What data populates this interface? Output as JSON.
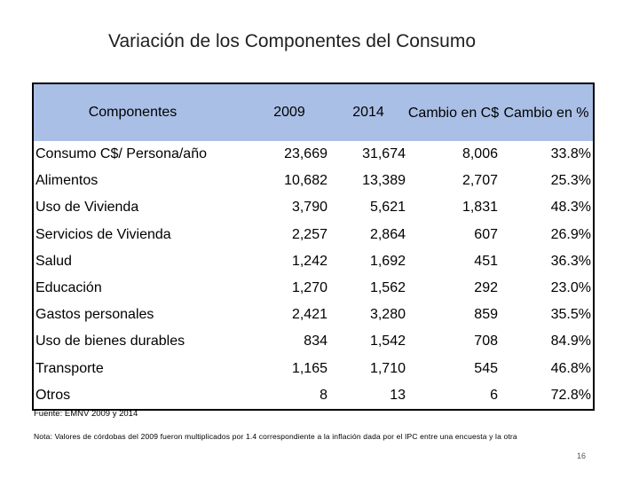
{
  "title": "Variación de los Componentes del Consumo",
  "table": {
    "headers": {
      "components": "Componentes",
      "y2009": "2009",
      "y2014": "2014",
      "change_abs": "Cambio en C$",
      "change_pct": "Cambio en %"
    },
    "rows": [
      {
        "name": "Consumo C$/ Persona/año",
        "y2009": "23,669",
        "y2014": "31,674",
        "change_abs": "8,006",
        "change_pct": "33.8%"
      },
      {
        "name": "Alimentos",
        "y2009": "10,682",
        "y2014": "13,389",
        "change_abs": "2,707",
        "change_pct": "25.3%"
      },
      {
        "name": "Uso de Vivienda",
        "y2009": "3,790",
        "y2014": "5,621",
        "change_abs": "1,831",
        "change_pct": "48.3%"
      },
      {
        "name": "Servicios de Vivienda",
        "y2009": "2,257",
        "y2014": "2,864",
        "change_abs": "607",
        "change_pct": "26.9%"
      },
      {
        "name": "Salud",
        "y2009": "1,242",
        "y2014": "1,692",
        "change_abs": "451",
        "change_pct": "36.3%"
      },
      {
        "name": "Educación",
        "y2009": "1,270",
        "y2014": "1,562",
        "change_abs": "292",
        "change_pct": "23.0%"
      },
      {
        "name": "Gastos personales",
        "y2009": "2,421",
        "y2014": "3,280",
        "change_abs": "859",
        "change_pct": "35.5%"
      },
      {
        "name": "Uso de bienes durables",
        "y2009": "834",
        "y2014": "1,542",
        "change_abs": "708",
        "change_pct": "84.9%"
      },
      {
        "name": "Transporte",
        "y2009": "1,165",
        "y2014": "1,710",
        "change_abs": "545",
        "change_pct": "46.8%"
      },
      {
        "name": "Otros",
        "y2009": "8",
        "y2014": "13",
        "change_abs": "6",
        "change_pct": "72.8%"
      }
    ]
  },
  "source": "Fuente: EMNV 2009 y 2014",
  "note": "Nota: Valores de córdobas del 2009 fueron multiplicados por 1.4 correspondiente a la inflación dada por el IPC entre una encuesta y la otra",
  "page_number": "16",
  "colors": {
    "header_bg": "#a9bfe6",
    "border": "#000000"
  }
}
